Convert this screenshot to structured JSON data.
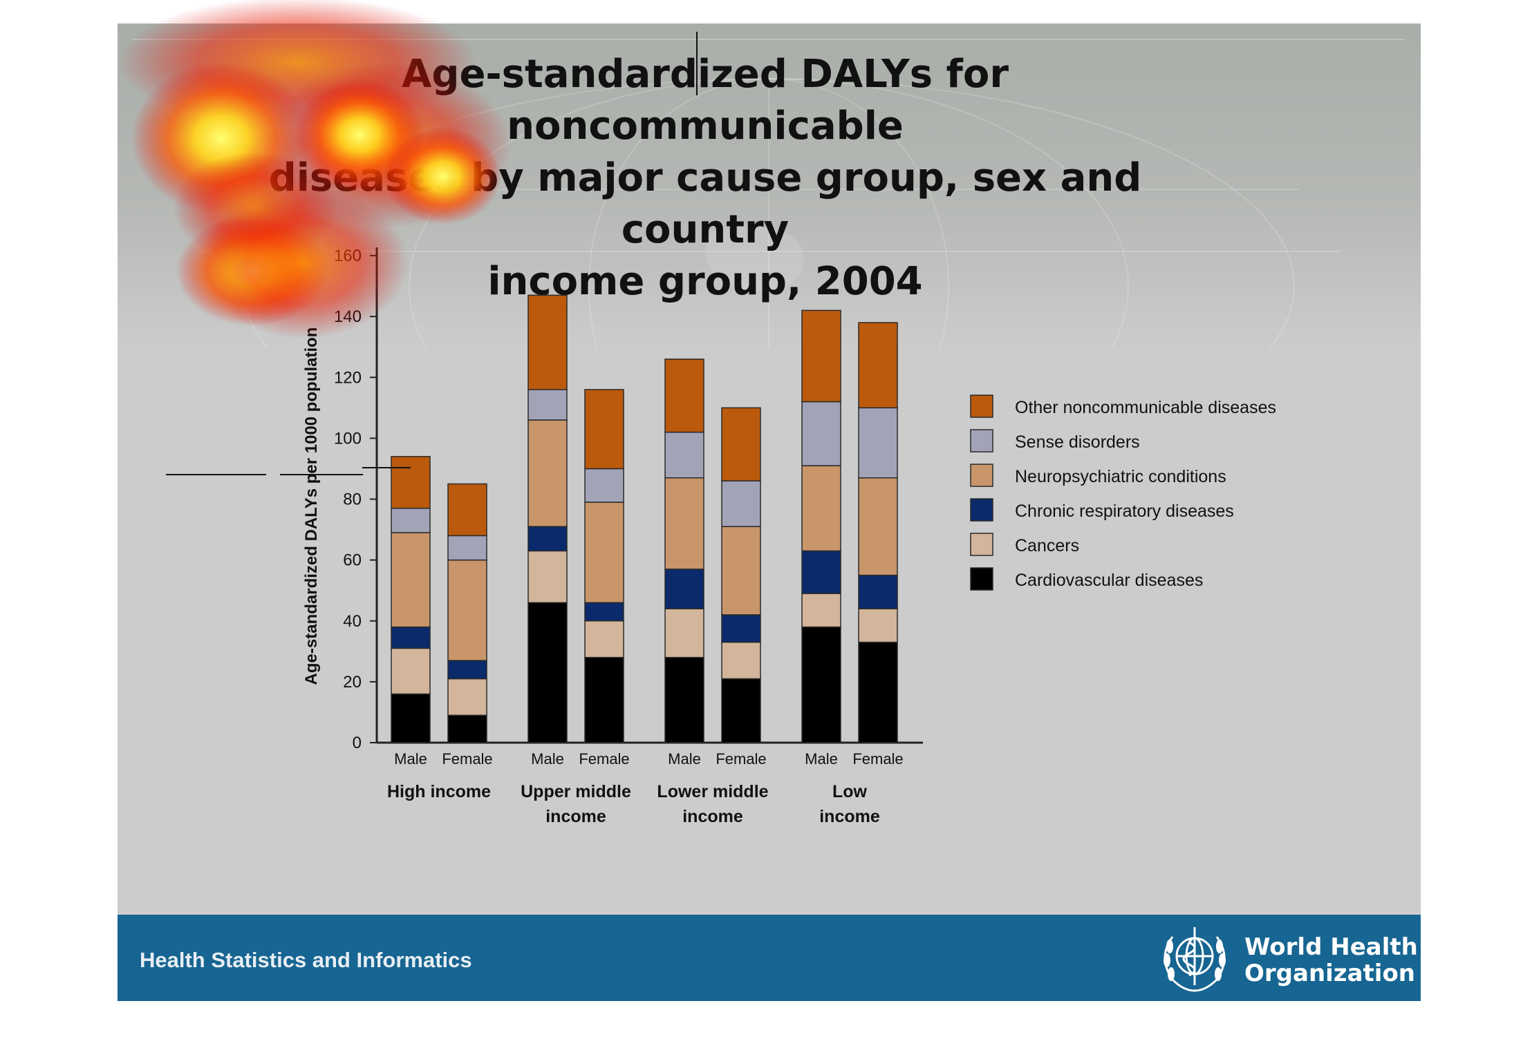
{
  "slide": {
    "title_lines": [
      "Age-standardized DALYs for noncommunicable",
      "diseases by major cause group,  sex and country",
      "income group, 2004"
    ],
    "footer_text": "Health Statistics and Informatics",
    "org_name_lines": [
      "World Health",
      "Organization"
    ],
    "footer_color": "#176592"
  },
  "chart_data": {
    "type": "bar",
    "stacked": true,
    "title": "",
    "ylabel": "Age-standardized DALYs per 1000 population",
    "xlabel": "",
    "ylim": [
      0,
      160
    ],
    "yticks": [
      0,
      20,
      40,
      60,
      80,
      100,
      120,
      140,
      160
    ],
    "groups": [
      {
        "label_lines": [
          "High income"
        ],
        "categories": [
          "Male",
          "Female"
        ]
      },
      {
        "label_lines": [
          "Upper middle",
          "income"
        ],
        "categories": [
          "Male",
          "Female"
        ]
      },
      {
        "label_lines": [
          "Lower middle",
          "income"
        ],
        "categories": [
          "Male",
          "Female"
        ]
      },
      {
        "label_lines": [
          "Low",
          "income"
        ],
        "categories": [
          "Male",
          "Female"
        ]
      }
    ],
    "series": [
      {
        "name": "Cardiovascular diseases",
        "color": "#000000",
        "values": [
          16,
          9,
          46,
          28,
          28,
          21,
          38,
          33
        ]
      },
      {
        "name": "Cancers",
        "color": "#d3b59c",
        "values": [
          15,
          12,
          17,
          12,
          16,
          12,
          11,
          11
        ]
      },
      {
        "name": "Chronic respiratory diseases",
        "color": "#0b2a6b",
        "values": [
          7,
          6,
          8,
          6,
          13,
          9,
          14,
          11
        ]
      },
      {
        "name": "Neuropsychiatric conditions",
        "color": "#c8966a",
        "values": [
          31,
          33,
          35,
          33,
          30,
          29,
          28,
          32
        ]
      },
      {
        "name": "Sense disorders",
        "color": "#a3a3b8",
        "values": [
          8,
          8,
          10,
          11,
          15,
          15,
          21,
          23
        ]
      },
      {
        "name": "Other noncommunicable diseases",
        "color": "#bb5a0d",
        "values": [
          17,
          17,
          31,
          26,
          24,
          24,
          30,
          28
        ]
      }
    ],
    "legend_position": "right",
    "legend_order": [
      "Other noncommunicable diseases",
      "Sense disorders",
      "Neuropsychiatric conditions",
      "Chronic respiratory diseases",
      "Cancers",
      "Cardiovascular diseases"
    ],
    "grid": false
  }
}
